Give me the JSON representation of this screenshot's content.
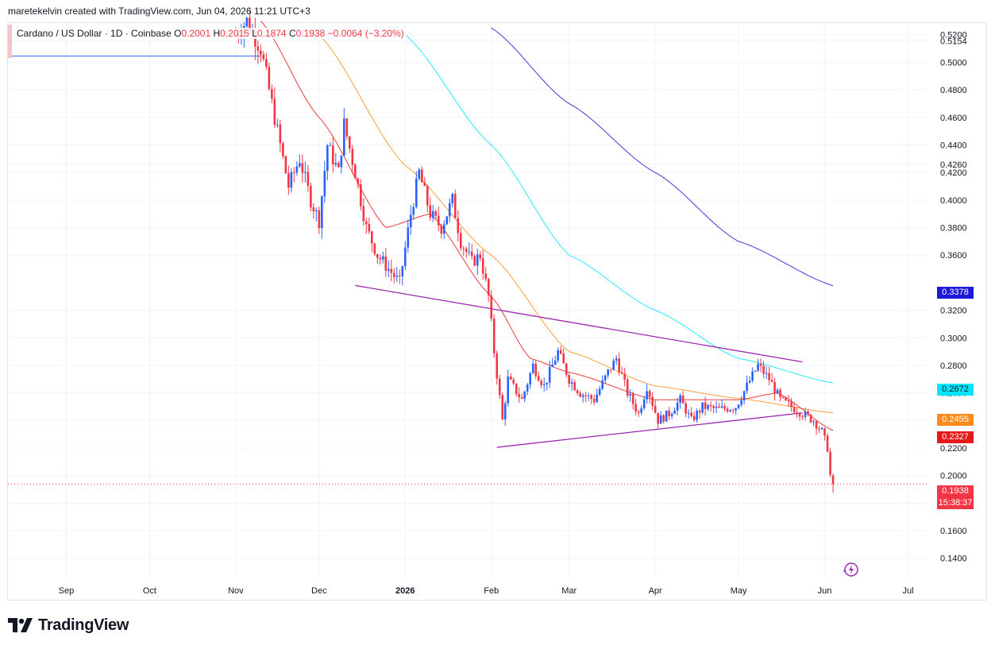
{
  "header": {
    "text": "maretekelvin created with TradingView.com, Jun 04, 2026 11:21 UTC+3"
  },
  "legend": {
    "symbol": "Cardano / US Dollar · 1D · Coinbase",
    "o_label": "O",
    "o_value": "0.2001",
    "h_label": "H",
    "h_value": "0.2015",
    "l_label": "L",
    "l_value": "0.1874",
    "c_label": "C",
    "c_value": "0.1938",
    "change": "−0.0064 (−3.20%)"
  },
  "price_labels": {
    "ma200": {
      "text": "0.3378",
      "color": "#1e18d8"
    },
    "ma100": {
      "text": "0.2672",
      "color": "#00e5ff"
    },
    "ma50": {
      "text": "0.2455",
      "color": "#ff8c1a"
    },
    "ma20": {
      "text": "0.2327",
      "color": "#e51919"
    },
    "last": {
      "text": "0.1938",
      "color": "#f23645"
    },
    "countdown": {
      "text": "15:38:37",
      "color": "#f23645"
    }
  },
  "logo": {
    "text": "TradingView"
  },
  "chart_data": {
    "type": "candlestick",
    "xlim": [
      "2025-08-11",
      "2026-07-08"
    ],
    "ylim": [
      0.126,
      0.5285
    ],
    "y_ticks": [
      0.52,
      0.5154,
      0.5,
      0.48,
      0.46,
      0.44,
      0.426,
      0.42,
      0.4,
      0.38,
      0.36,
      0.32,
      0.3,
      0.28,
      0.26,
      0.24,
      0.22,
      0.2,
      0.18,
      0.16,
      0.14
    ],
    "y_tick_labels": [
      "0.5200",
      "0.5154",
      "0.5000",
      "0.4800",
      "0.4600",
      "0.4400",
      "0.4260",
      "0.4200",
      "0.4000",
      "0.3800",
      "0.3600",
      "0.3200",
      "0.3000",
      "0.2800",
      "0.2600",
      "0.2400",
      "0.2200",
      "0.2000",
      "0.1800",
      "0.1600",
      "0.1400"
    ],
    "x_ticks": [
      {
        "date": "2025-09-01",
        "label": "Sep"
      },
      {
        "date": "2025-10-01",
        "label": "Oct"
      },
      {
        "date": "2025-11-01",
        "label": "Nov"
      },
      {
        "date": "2025-12-01",
        "label": "Dec"
      },
      {
        "date": "2026-01-01",
        "label": "2026"
      },
      {
        "date": "2026-02-01",
        "label": "Feb"
      },
      {
        "date": "2026-03-01",
        "label": "Mar"
      },
      {
        "date": "2026-04-01",
        "label": "Apr"
      },
      {
        "date": "2026-05-01",
        "label": "May"
      },
      {
        "date": "2026-06-01",
        "label": "Jun"
      },
      {
        "date": "2026-07-01",
        "label": "Jul"
      }
    ],
    "up_color": "#2962ff",
    "down_color": "#f23645",
    "close_path": [
      [
        "2025-11-01",
        0.52
      ],
      [
        "2025-11-05",
        0.53
      ],
      [
        "2025-11-10",
        0.51
      ],
      [
        "2025-11-15",
        0.46
      ],
      [
        "2025-11-20",
        0.41
      ],
      [
        "2025-11-24",
        0.43
      ],
      [
        "2025-11-28",
        0.4
      ],
      [
        "2025-12-01",
        0.385
      ],
      [
        "2025-12-04",
        0.44
      ],
      [
        "2025-12-08",
        0.42
      ],
      [
        "2025-12-10",
        0.455
      ],
      [
        "2025-12-14",
        0.42
      ],
      [
        "2025-12-18",
        0.38
      ],
      [
        "2025-12-22",
        0.36
      ],
      [
        "2025-12-26",
        0.35
      ],
      [
        "2025-12-30",
        0.34
      ],
      [
        "2026-01-03",
        0.39
      ],
      [
        "2026-01-06",
        0.42
      ],
      [
        "2026-01-10",
        0.39
      ],
      [
        "2026-01-14",
        0.38
      ],
      [
        "2026-01-18",
        0.4
      ],
      [
        "2026-01-21",
        0.37
      ],
      [
        "2026-01-25",
        0.355
      ],
      [
        "2026-01-28",
        0.36
      ],
      [
        "2026-01-31",
        0.33
      ],
      [
        "2026-02-02",
        0.29
      ],
      [
        "2026-02-05",
        0.24
      ],
      [
        "2026-02-07",
        0.27
      ],
      [
        "2026-02-12",
        0.255
      ],
      [
        "2026-02-16",
        0.28
      ],
      [
        "2026-02-20",
        0.265
      ],
      [
        "2026-02-25",
        0.29
      ],
      [
        "2026-03-01",
        0.27
      ],
      [
        "2026-03-05",
        0.26
      ],
      [
        "2026-03-10",
        0.255
      ],
      [
        "2026-03-15",
        0.275
      ],
      [
        "2026-03-18",
        0.285
      ],
      [
        "2026-03-22",
        0.26
      ],
      [
        "2026-03-26",
        0.245
      ],
      [
        "2026-03-29",
        0.265
      ],
      [
        "2026-04-02",
        0.24
      ],
      [
        "2026-04-06",
        0.245
      ],
      [
        "2026-04-10",
        0.255
      ],
      [
        "2026-04-14",
        0.24
      ],
      [
        "2026-04-18",
        0.25
      ],
      [
        "2026-04-24",
        0.248
      ],
      [
        "2026-04-30",
        0.25
      ],
      [
        "2026-05-04",
        0.265
      ],
      [
        "2026-05-08",
        0.28
      ],
      [
        "2026-05-12",
        0.27
      ],
      [
        "2026-05-16",
        0.255
      ],
      [
        "2026-05-20",
        0.25
      ],
      [
        "2026-05-24",
        0.245
      ],
      [
        "2026-05-28",
        0.24
      ],
      [
        "2026-05-31",
        0.232
      ],
      [
        "2026-06-02",
        0.22
      ],
      [
        "2026-06-03",
        0.2001
      ],
      [
        "2026-06-04",
        0.1938
      ]
    ],
    "last_candle": {
      "date": "2026-06-04",
      "open": 0.2001,
      "high": 0.2015,
      "low": 0.1874,
      "close": 0.1938
    },
    "moving_averages": [
      {
        "color": "#1e18d8",
        "points": [
          [
            "2026-02-01",
            0.525
          ],
          [
            "2026-03-01",
            0.47
          ],
          [
            "2026-04-01",
            0.42
          ],
          [
            "2026-05-01",
            0.37
          ],
          [
            "2026-06-04",
            0.3378
          ]
        ]
      },
      {
        "color": "#00e5ff",
        "points": [
          [
            "2026-01-01",
            0.52
          ],
          [
            "2026-02-01",
            0.44
          ],
          [
            "2026-03-01",
            0.36
          ],
          [
            "2026-04-01",
            0.32
          ],
          [
            "2026-05-01",
            0.285
          ],
          [
            "2026-06-04",
            0.2672
          ]
        ]
      },
      {
        "color": "#ff8c1a",
        "points": [
          [
            "2025-12-01",
            0.52
          ],
          [
            "2026-01-01",
            0.425
          ],
          [
            "2026-02-01",
            0.36
          ],
          [
            "2026-03-01",
            0.29
          ],
          [
            "2026-04-01",
            0.265
          ],
          [
            "2026-05-01",
            0.256
          ],
          [
            "2026-06-04",
            0.2455
          ]
        ]
      },
      {
        "color": "#e51919",
        "points": [
          [
            "2025-11-10",
            0.53
          ],
          [
            "2025-12-01",
            0.46
          ],
          [
            "2025-12-25",
            0.38
          ],
          [
            "2026-01-10",
            0.39
          ],
          [
            "2026-02-01",
            0.33
          ],
          [
            "2026-02-15",
            0.285
          ],
          [
            "2026-03-01",
            0.275
          ],
          [
            "2026-04-01",
            0.255
          ],
          [
            "2026-05-01",
            0.255
          ],
          [
            "2026-05-15",
            0.26
          ],
          [
            "2026-06-04",
            0.2327
          ]
        ]
      }
    ],
    "trendlines": [
      {
        "color": "#9c27b0",
        "from": [
          "2025-12-14",
          0.338
        ],
        "to": [
          "2026-05-24",
          0.2825
        ]
      },
      {
        "color": "#9c27b0",
        "from": [
          "2026-02-03",
          0.2205
        ],
        "to": [
          "2026-05-24",
          0.2455
        ]
      }
    ],
    "horizontal_segments": [
      {
        "color": "#2962ff",
        "price": 0.5045,
        "from": "2025-08-11",
        "to": "2025-11-10"
      }
    ],
    "last_price_line": {
      "price": 0.1938,
      "color": "#f23645"
    }
  }
}
